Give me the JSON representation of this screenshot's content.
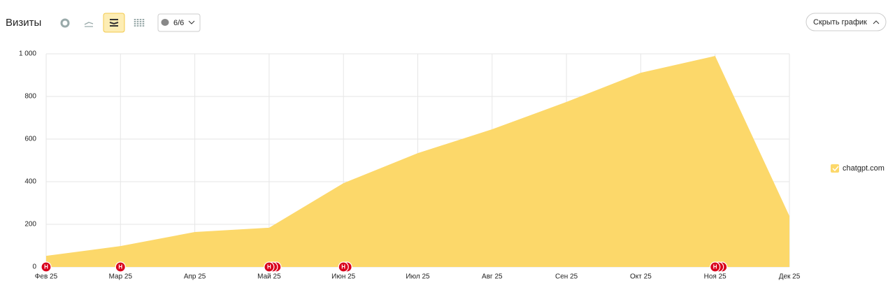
{
  "chart_data": {
    "type": "area",
    "title": "Визиты",
    "segment_filter": "6/6",
    "hide_button": "Скрыть график",
    "categories": [
      "Фев 25",
      "Мар 25",
      "Апр 25",
      "Май 25",
      "Июн 25",
      "Июл 25",
      "Авг 25",
      "Сен 25",
      "Окт 25",
      "Ноя 25",
      "Дек 25"
    ],
    "series": [
      {
        "name": "chatgpt.com",
        "color": "#fcd86a",
        "values": [
          52,
          98,
          164,
          184,
          393,
          534,
          646,
          774,
          911,
          990,
          239
        ]
      }
    ],
    "ylim": [
      0,
      1000
    ],
    "yticks": [
      0,
      200,
      400,
      600,
      800,
      {
        "value": 1000,
        "label": "1 000"
      }
    ],
    "grid": true,
    "legend": "right",
    "annotations": [
      {
        "x": "Фев 25",
        "label": "Н",
        "count": 1
      },
      {
        "x": "Мар 25",
        "label": "Н",
        "count": 1
      },
      {
        "x": "Май 25",
        "label": "Н",
        "count": 3
      },
      {
        "x": "Июн 25",
        "label": "Н",
        "count": 2
      },
      {
        "x": "Ноя 25",
        "label": "Н",
        "count": 3
      }
    ]
  }
}
